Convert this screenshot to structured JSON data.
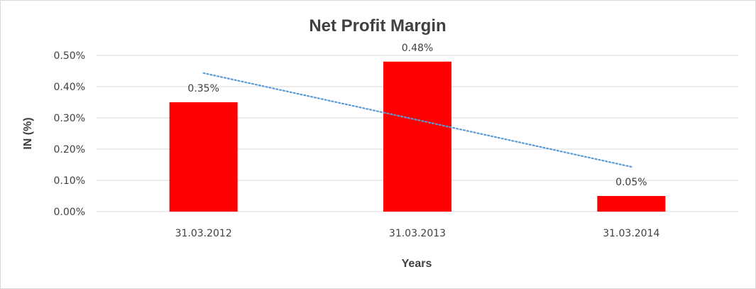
{
  "chart_data": {
    "type": "bar",
    "title": "Net Profit Margin",
    "xlabel": "Years",
    "ylabel": "IN (%)",
    "categories": [
      "31.03.2012",
      "31.03.2013",
      "31.03.2014"
    ],
    "values": [
      0.35,
      0.48,
      0.05
    ],
    "data_labels": [
      "0.35%",
      "0.48%",
      "0.05%"
    ],
    "ylim": [
      0,
      0.5
    ],
    "yticks": [
      0,
      0.1,
      0.2,
      0.3,
      0.4,
      0.5
    ],
    "ytick_labels": [
      "0.00%",
      "0.10%",
      "0.20%",
      "0.30%",
      "0.40%",
      "0.50%"
    ],
    "trendline": {
      "type": "linear",
      "style": "dotted",
      "color": "#5b9bd5"
    },
    "bar_color": "#ff0000",
    "gridlines": true,
    "legend": "none"
  }
}
